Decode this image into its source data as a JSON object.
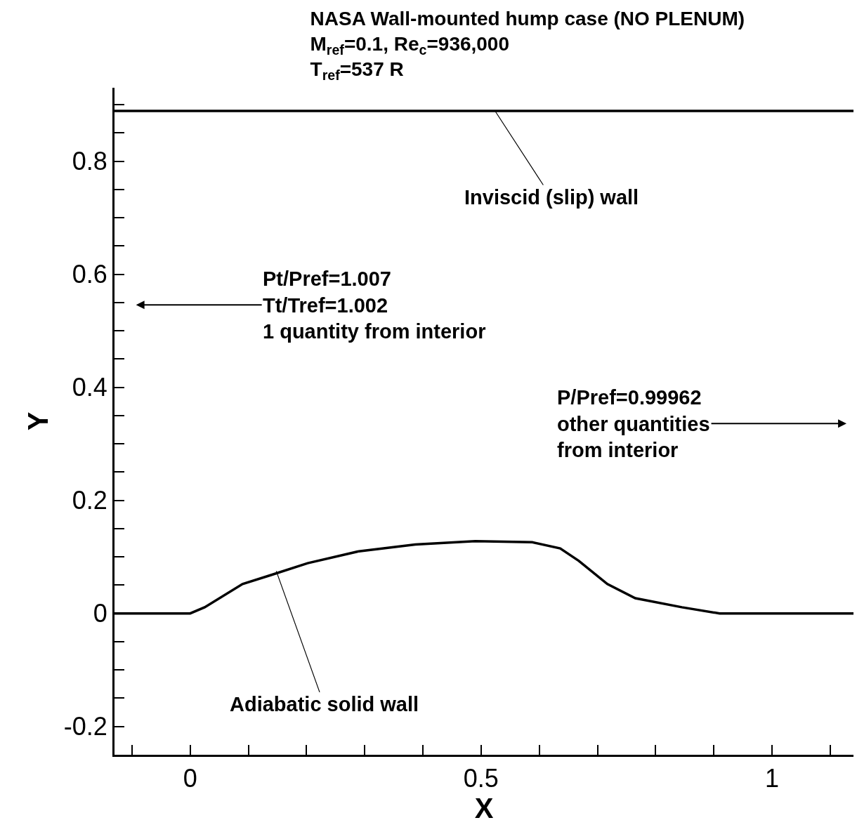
{
  "chart_data": {
    "type": "line",
    "title": "NASA Wall-mounted hump case (NO PLENUM)\nM$_{ref}$=0.1, Re$_{c}$=936,000\nT$_{ref}$=537 R",
    "xlabel": "X",
    "ylabel": "Y",
    "series": [
      {
        "color": "#000000",
        "x": [
          -0.13,
          1.14
        ],
        "values": [
          0.889,
          0.889
        ]
      },
      {
        "color": "#000000",
        "x": [
          -0.13,
          0.0,
          0.025,
          0.09,
          0.139,
          0.202,
          0.29,
          0.387,
          0.49,
          0.588,
          0.636,
          0.668,
          0.717,
          0.765,
          0.845,
          0.91,
          1.14
        ],
        "values": [
          0,
          0,
          0.011,
          0.052,
          0.068,
          0.089,
          0.11,
          0.122,
          0.128,
          0.126,
          0.115,
          0.093,
          0.052,
          0.027,
          0.011,
          0,
          0
        ]
      }
    ],
    "annotations": [
      {
        "text": "Inviscid (slip) wall",
        "x": 0.524,
        "y": 0.889
      },
      {
        "text": "Adiabatic solid wall",
        "x": 0.148,
        "y": 0.075
      },
      "Pt/Pref=1.007\nTt/Tref=1.002\n1 quantity from interior",
      "P/Pref=0.99962\nother quantities\nfrom interior"
    ],
    "xlim": [
      -0.13,
      1.14
    ],
    "xticks": [
      {
        "value": -0.1,
        "label": null
      },
      0,
      {
        "value": 0.1,
        "label": null
      },
      {
        "value": 0.2,
        "label": null
      },
      {
        "value": 0.3,
        "label": null
      },
      {
        "value": 0.4,
        "label": null
      },
      0.5,
      {
        "value": 0.6,
        "label": null
      },
      {
        "value": 0.7,
        "label": null
      },
      {
        "value": 0.8,
        "label": null
      },
      {
        "value": 0.9,
        "label": null
      },
      1,
      {
        "value": 1.1,
        "label": null
      }
    ],
    "ylim": [
      -0.25,
      0.93
    ],
    "yticks": [
      {
        "value": -0.25,
        "label": null
      },
      -0.2,
      {
        "value": -0.15,
        "label": null
      },
      {
        "value": -0.1,
        "label": null
      },
      {
        "value": -0.05,
        "label": null
      },
      0,
      {
        "value": 0.05,
        "label": null
      },
      {
        "value": 0.1,
        "label": null
      },
      {
        "value": 0.15,
        "label": null
      },
      0.2,
      {
        "value": 0.25,
        "label": null
      },
      {
        "value": 0.3,
        "label": null
      },
      {
        "value": 0.35,
        "label": null
      },
      0.4,
      {
        "value": 0.45,
        "label": null
      },
      {
        "value": 0.5,
        "label": null
      },
      {
        "value": 0.55,
        "label": null
      },
      0.6,
      {
        "value": 0.65,
        "label": null
      },
      {
        "value": 0.7,
        "label": null
      },
      {
        "value": 0.75,
        "label": null
      },
      0.8,
      {
        "value": 0.85,
        "label": null
      },
      {
        "value": 0.9,
        "label": null
      }
    ],
    "marker": "none",
    "line_style": "solid"
  }
}
